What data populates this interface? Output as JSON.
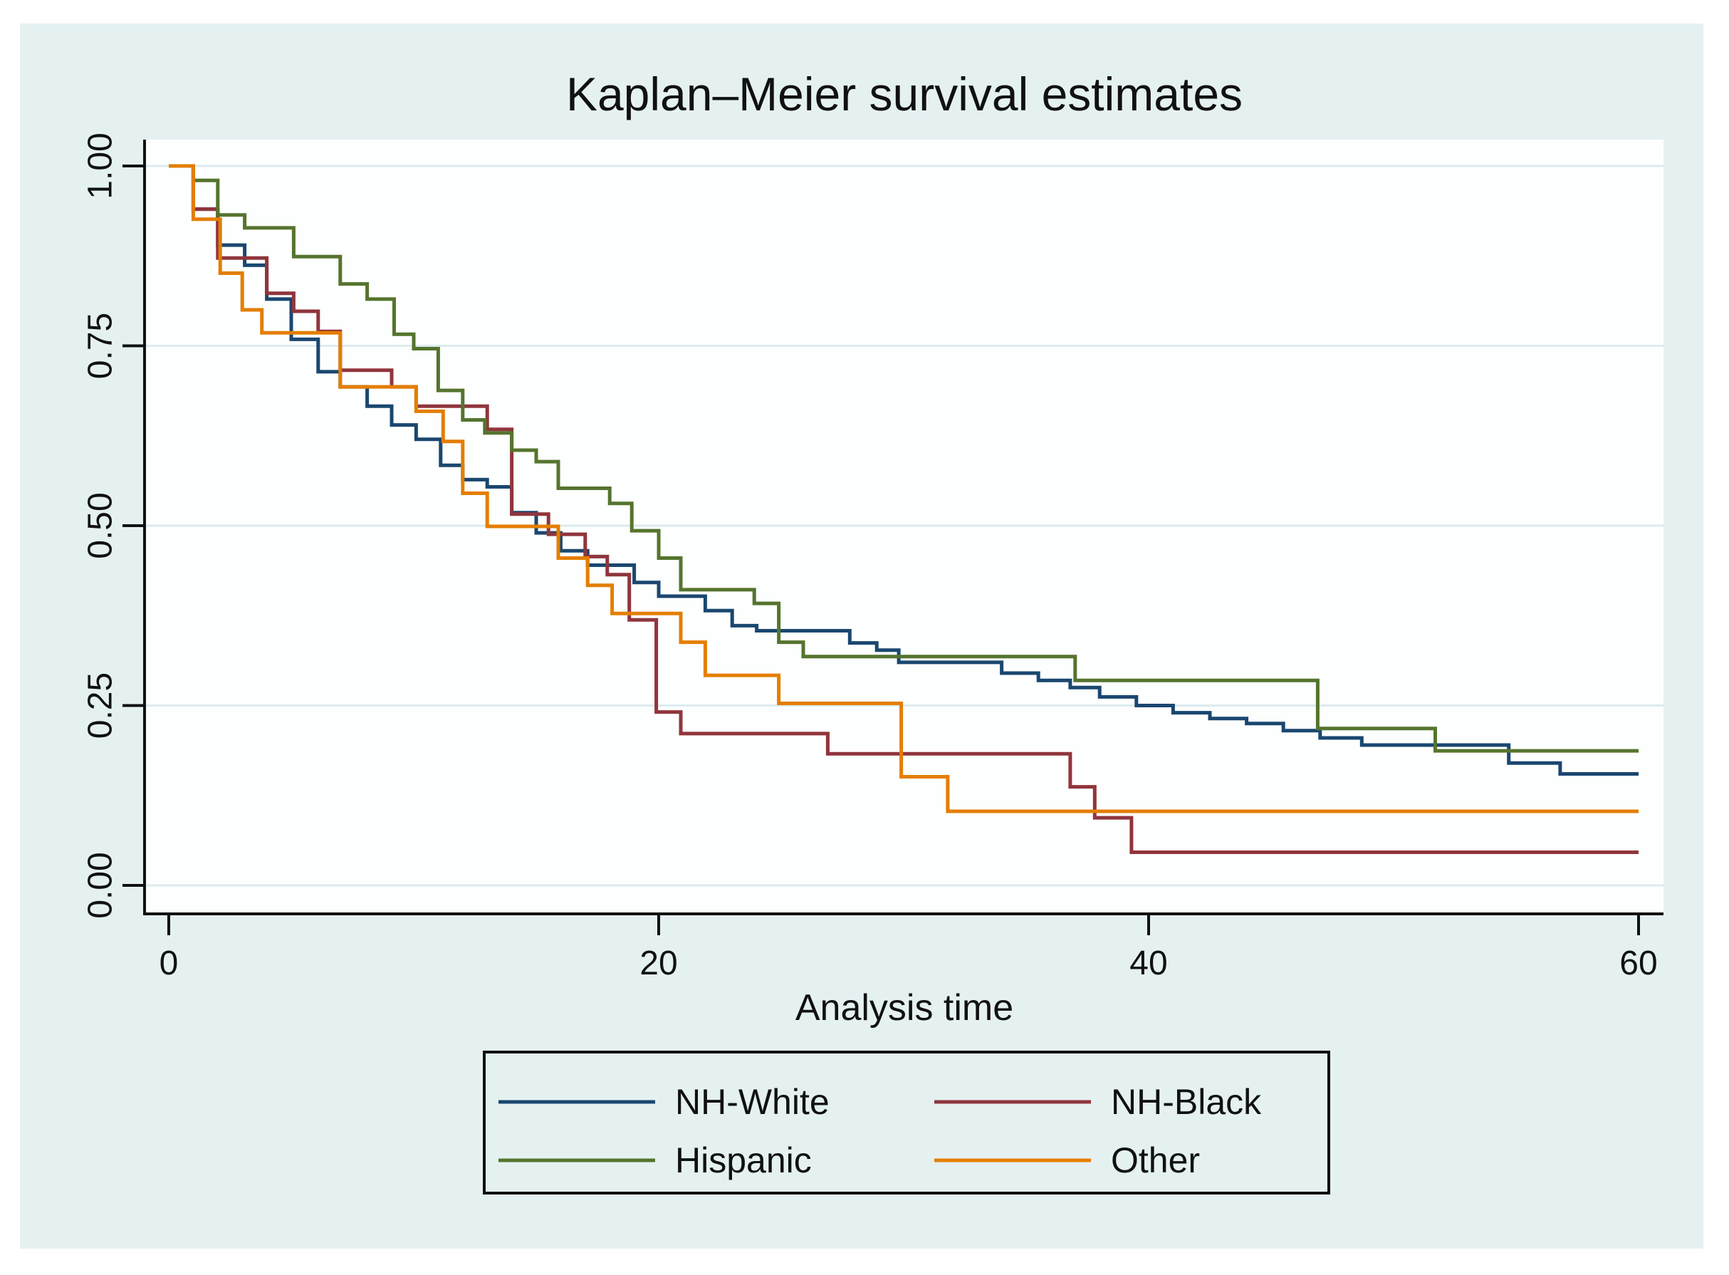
{
  "title": "Kaplan–Meier survival estimates",
  "figure": {
    "background_color": "#e5f1f1",
    "plot_background_color": "#fdfefe",
    "grid_color": "#dcebed",
    "axis_color": "#111111",
    "title_color": "#253a60",
    "text_color": "#111111"
  },
  "chart_data": {
    "type": "line",
    "variant": "kaplan-meier-step",
    "title": "Kaplan–Meier survival estimates",
    "xlabel": "Analysis time",
    "ylabel": "",
    "xlim": [
      0,
      60
    ],
    "ylim": [
      0,
      1
    ],
    "grid": "horizontal",
    "legend_position": "bottom-center",
    "x_ticks": [
      {
        "value": 0,
        "label": "0"
      },
      {
        "value": 20,
        "label": "20"
      },
      {
        "value": 40,
        "label": "40"
      },
      {
        "value": 60,
        "label": "60"
      }
    ],
    "y_ticks": [
      {
        "value": 1.0,
        "label": "1.00"
      },
      {
        "value": 0.75,
        "label": "0.75"
      },
      {
        "value": 0.5,
        "label": "0.50"
      },
      {
        "value": 0.25,
        "label": "0.25"
      },
      {
        "value": 0.0,
        "label": "0.00"
      }
    ],
    "series": [
      {
        "name": "NH-White",
        "color": "#1a476f",
        "points": [
          [
            0,
            1
          ],
          [
            1,
            0.94
          ],
          [
            2,
            0.89
          ],
          [
            3.1,
            0.862
          ],
          [
            4,
            0.815
          ],
          [
            5,
            0.759
          ],
          [
            6.1,
            0.714
          ],
          [
            7,
            0.693
          ],
          [
            8.1,
            0.666
          ],
          [
            9.1,
            0.64
          ],
          [
            10.1,
            0.62
          ],
          [
            11.1,
            0.584
          ],
          [
            12,
            0.564
          ],
          [
            13,
            0.554
          ],
          [
            14,
            0.518
          ],
          [
            15,
            0.49
          ],
          [
            16,
            0.465
          ],
          [
            17.1,
            0.445
          ],
          [
            19,
            0.421
          ],
          [
            20,
            0.402
          ],
          [
            21.9,
            0.382
          ],
          [
            23,
            0.361
          ],
          [
            24,
            0.354
          ],
          [
            27.8,
            0.337
          ],
          [
            28.9,
            0.327
          ],
          [
            29.8,
            0.31
          ],
          [
            34,
            0.295
          ],
          [
            35.5,
            0.285
          ],
          [
            36.8,
            0.275
          ],
          [
            38,
            0.262
          ],
          [
            39.5,
            0.25
          ],
          [
            41,
            0.24
          ],
          [
            42.5,
            0.232
          ],
          [
            44,
            0.225
          ],
          [
            45.5,
            0.215
          ],
          [
            47,
            0.205
          ],
          [
            48.7,
            0.195
          ],
          [
            54.7,
            0.17
          ],
          [
            56.8,
            0.155
          ],
          [
            60,
            0.155
          ]
        ]
      },
      {
        "name": "NH-Black",
        "color": "#90353b",
        "points": [
          [
            0,
            1
          ],
          [
            1,
            0.94
          ],
          [
            2,
            0.872
          ],
          [
            4,
            0.823
          ],
          [
            5.1,
            0.798
          ],
          [
            6.1,
            0.77
          ],
          [
            7,
            0.716
          ],
          [
            9.1,
            0.693
          ],
          [
            10.1,
            0.666
          ],
          [
            13,
            0.634
          ],
          [
            14,
            0.516
          ],
          [
            15.5,
            0.488
          ],
          [
            17,
            0.457
          ],
          [
            17.9,
            0.432
          ],
          [
            18.8,
            0.369
          ],
          [
            19.9,
            0.241
          ],
          [
            20.9,
            0.211
          ],
          [
            26.9,
            0.183
          ],
          [
            36.8,
            0.137
          ],
          [
            37.8,
            0.094
          ],
          [
            39.3,
            0.046
          ],
          [
            60,
            0.046
          ]
        ]
      },
      {
        "name": "Hispanic",
        "color": "#55752f",
        "points": [
          [
            0,
            1
          ],
          [
            1,
            0.98
          ],
          [
            2,
            0.932
          ],
          [
            3.1,
            0.914
          ],
          [
            5.1,
            0.874
          ],
          [
            7,
            0.836
          ],
          [
            8.1,
            0.815
          ],
          [
            9.2,
            0.766
          ],
          [
            10,
            0.746
          ],
          [
            11,
            0.688
          ],
          [
            12,
            0.647
          ],
          [
            12.9,
            0.629
          ],
          [
            14,
            0.605
          ],
          [
            15,
            0.589
          ],
          [
            15.9,
            0.552
          ],
          [
            18,
            0.531
          ],
          [
            18.9,
            0.493
          ],
          [
            20,
            0.455
          ],
          [
            20.9,
            0.411
          ],
          [
            23.9,
            0.392
          ],
          [
            24.9,
            0.338
          ],
          [
            25.9,
            0.318
          ],
          [
            37,
            0.285
          ],
          [
            46.9,
            0.218
          ],
          [
            51.7,
            0.187
          ],
          [
            60,
            0.187
          ]
        ]
      },
      {
        "name": "Other",
        "color": "#e37e00",
        "points": [
          [
            0,
            1
          ],
          [
            1,
            0.926
          ],
          [
            2.1,
            0.851
          ],
          [
            3,
            0.8
          ],
          [
            3.8,
            0.768
          ],
          [
            7,
            0.693
          ],
          [
            10.1,
            0.659
          ],
          [
            11.2,
            0.617
          ],
          [
            12,
            0.545
          ],
          [
            13,
            0.499
          ],
          [
            15.9,
            0.455
          ],
          [
            17.1,
            0.417
          ],
          [
            18.1,
            0.378
          ],
          [
            20.9,
            0.338
          ],
          [
            21.9,
            0.292
          ],
          [
            24.9,
            0.253
          ],
          [
            29.9,
            0.151
          ],
          [
            31.8,
            0.103
          ],
          [
            60,
            0.103
          ]
        ]
      }
    ]
  },
  "legend": {
    "entries": [
      {
        "label": "NH-White"
      },
      {
        "label": "NH-Black"
      },
      {
        "label": "Hispanic"
      },
      {
        "label": "Other"
      }
    ]
  }
}
